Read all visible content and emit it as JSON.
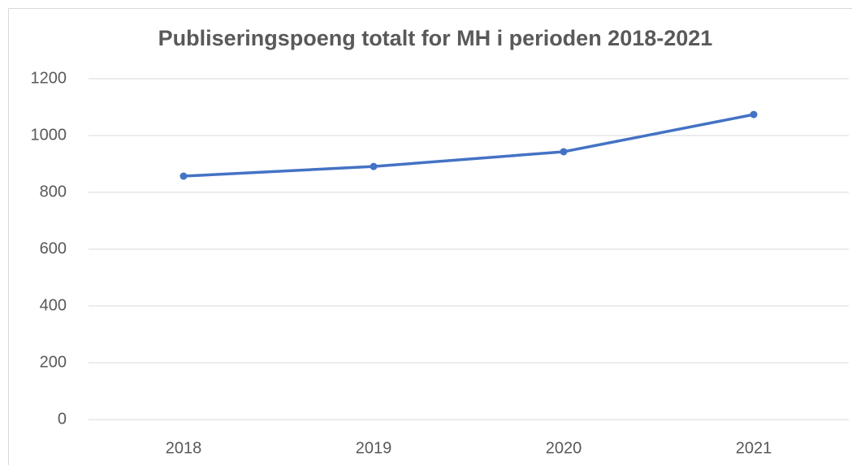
{
  "chart_data": {
    "type": "line",
    "title": "Publiseringspoeng totalt for MH i perioden 2018-2021",
    "categories": [
      "2018",
      "2019",
      "2020",
      "2021"
    ],
    "values": [
      857,
      891,
      943,
      1074
    ],
    "color": "#4472c4",
    "ylim": [
      0,
      1200
    ],
    "yticks": [
      0,
      200,
      400,
      600,
      800,
      1000,
      1200
    ],
    "grid": true
  }
}
